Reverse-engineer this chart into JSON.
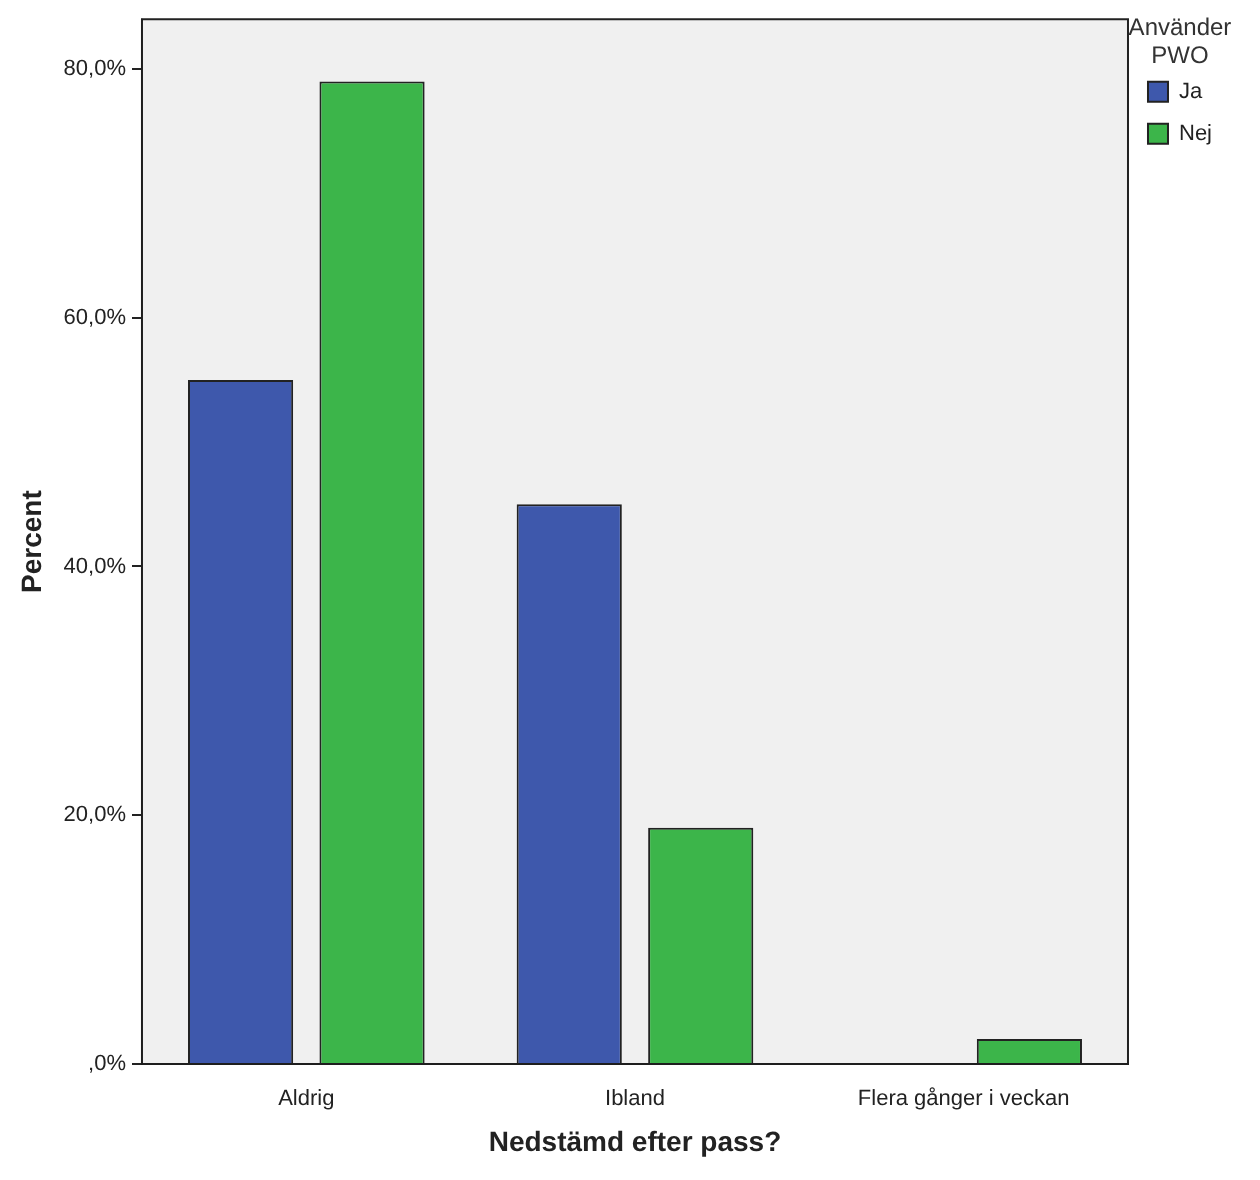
{
  "chart_data": {
    "type": "bar",
    "xlabel": "Nedstämd efter pass?",
    "ylabel": "Percent",
    "legend_title": "Använder PWO",
    "categories": [
      "Aldrig",
      "Ibland",
      "Flera gånger i veckan"
    ],
    "series": [
      {
        "name": "Ja",
        "color": "#3e58ac",
        "values": [
          55,
          45,
          0
        ]
      },
      {
        "name": "Nej",
        "color": "#3cb54a",
        "values": [
          79,
          19,
          2
        ]
      }
    ],
    "ylim": [
      0,
      84
    ],
    "yticks": [
      {
        "value": 0,
        "label": ",0%"
      },
      {
        "value": 20,
        "label": "20,0%"
      },
      {
        "value": 40,
        "label": "40,0%"
      },
      {
        "value": 60,
        "label": "60,0%"
      },
      {
        "value": 80,
        "label": "80,0%"
      }
    ],
    "grid": false,
    "legend": "top right"
  }
}
